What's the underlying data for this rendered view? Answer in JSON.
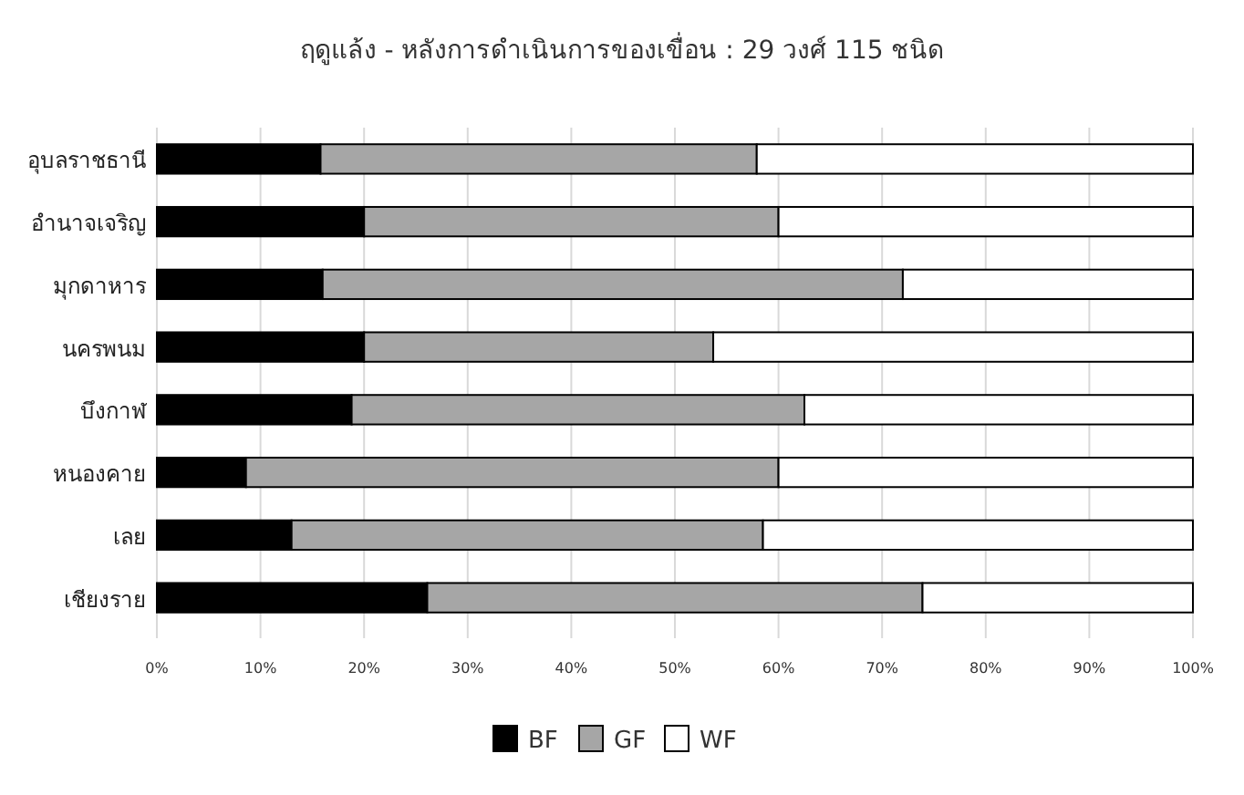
{
  "chart_data": {
    "type": "bar",
    "title": "ฤดูแล้ง - หลังการดำเนินการของเขื่อน : 29 วงศ์ 115 ชนิด",
    "orientation": "horizontal",
    "stacked": true,
    "categories": [
      "อุบลราชธานี",
      "อำนาจเจริญ",
      "มุกดาหาร",
      "นครพนม",
      "บึงกาฬ",
      "หนองคาย",
      "เลย",
      "เชียงราย"
    ],
    "series": [
      {
        "name": "BF",
        "color": "#000000",
        "values": [
          15.8,
          20,
          16,
          20,
          18.8,
          8.6,
          13,
          26.1
        ]
      },
      {
        "name": "GF",
        "color": "#a6a6a6",
        "values": [
          42.1,
          40,
          56,
          33.7,
          43.7,
          51.4,
          45.5,
          47.8
        ]
      },
      {
        "name": "WF",
        "color": "#ffffff",
        "values": [
          42.1,
          40,
          28,
          46.3,
          37.5,
          40,
          41.5,
          26.1
        ]
      }
    ],
    "xlim": [
      0,
      100
    ],
    "xticks": [
      {
        "value": 0,
        "label": "0%"
      },
      {
        "value": 10,
        "label": "10%"
      },
      {
        "value": 20,
        "label": "20%"
      },
      {
        "value": 30,
        "label": "30%"
      },
      {
        "value": 40,
        "label": "40%"
      },
      {
        "value": 50,
        "label": "50%"
      },
      {
        "value": 60,
        "label": "60%"
      },
      {
        "value": 70,
        "label": "70%"
      },
      {
        "value": 80,
        "label": "80%"
      },
      {
        "value": 90,
        "label": "90%"
      },
      {
        "value": 100,
        "label": "100%"
      }
    ],
    "grid": "x",
    "legend": "bottom"
  }
}
